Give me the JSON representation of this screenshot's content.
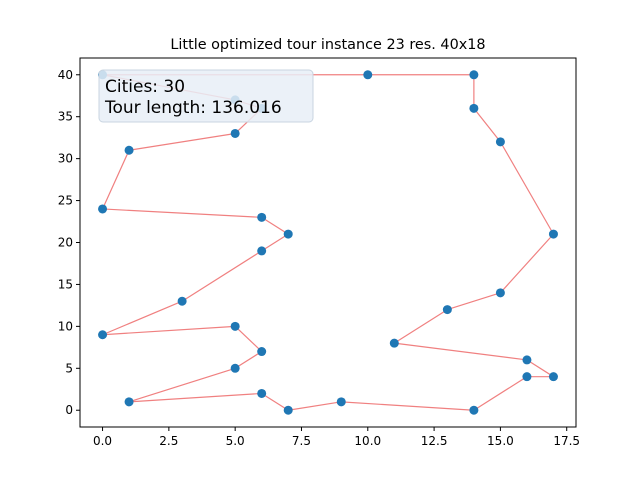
{
  "chart_data": {
    "type": "scatter",
    "title": "Little optimized tour instance 23 res. 40x18",
    "xlabel": "",
    "ylabel": "",
    "xlim": [
      -0.85,
      17.85
    ],
    "ylim": [
      -2,
      42
    ],
    "xticks": [
      0.0,
      2.5,
      5.0,
      7.5,
      10.0,
      12.5,
      15.0,
      17.5
    ],
    "xtick_labels": [
      "0.0",
      "2.5",
      "5.0",
      "7.5",
      "10.0",
      "12.5",
      "15.0",
      "17.5"
    ],
    "yticks": [
      0,
      5,
      10,
      15,
      20,
      25,
      30,
      35,
      40
    ],
    "ytick_labels": [
      "0",
      "5",
      "10",
      "15",
      "20",
      "25",
      "30",
      "35",
      "40"
    ],
    "grid": false,
    "point_color": "#1f77b4",
    "line_color": "#f08080",
    "tour": [
      [
        0,
        40
      ],
      [
        10,
        40
      ],
      [
        14,
        40
      ],
      [
        14,
        36
      ],
      [
        15,
        32
      ],
      [
        17,
        21
      ],
      [
        15,
        14
      ],
      [
        13,
        12
      ],
      [
        11,
        8
      ],
      [
        16,
        6
      ],
      [
        17,
        4
      ],
      [
        16,
        4
      ],
      [
        14,
        0
      ],
      [
        9,
        1
      ],
      [
        7,
        0
      ],
      [
        6,
        2
      ],
      [
        1,
        1
      ],
      [
        5,
        5
      ],
      [
        6,
        7
      ],
      [
        5,
        10
      ],
      [
        0,
        9
      ],
      [
        3,
        13
      ],
      [
        6,
        19
      ],
      [
        7,
        21
      ],
      [
        6,
        23
      ],
      [
        0,
        24
      ],
      [
        1,
        31
      ],
      [
        5,
        33
      ],
      [
        6,
        36
      ],
      [
        5,
        37
      ]
    ],
    "annotation": {
      "cities_label": "Cities: 30",
      "tour_length_label": "Tour length: 136.016",
      "box_fill": "#e8eff7",
      "box_stroke": "#c8d4e0"
    }
  }
}
